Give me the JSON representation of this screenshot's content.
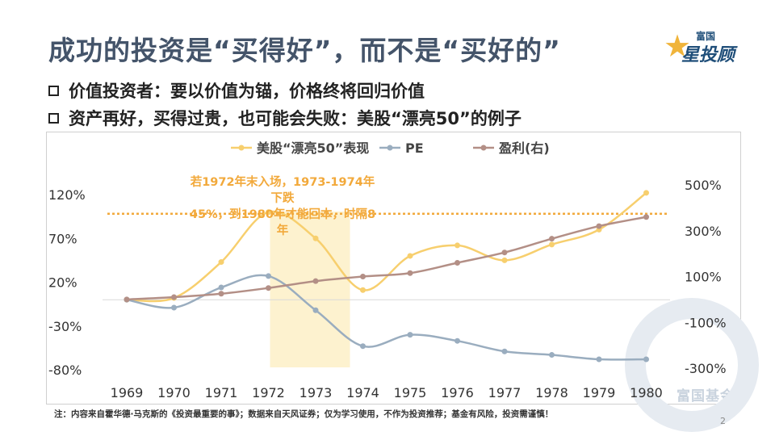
{
  "title": "成功的投资是“买得好”，而不是“买好的”",
  "logo": {
    "top": "富国",
    "main": "星投顾"
  },
  "bullets": [
    "价值投资者：要以价值为锚，价格终将回归价值",
    "资产再好，买得过贵，也可能会失败：美股“漂亮50”的例子"
  ],
  "annotation": [
    "若1972年末入场，1973-1974年下跌",
    "45%，到1980年才能回本，时隔8年"
  ],
  "note": "注：内容来自霍华德·马克斯的《投资最重要的事》；数据来自天风证券；仅为学习使用，不作为投资推荐；基金有风险，投资需谨慎！",
  "page_number": "2",
  "watermark": "富国基金",
  "colors": {
    "nifty50": "#f7cf6e",
    "pe": "#9aadbf",
    "earnings": "#b38f86",
    "annotation": "#f2a93b",
    "highlight": "#fdf2cf"
  },
  "chart_data": {
    "type": "line",
    "title": "",
    "legend_position": "top",
    "categories": [
      "1969",
      "1970",
      "1971",
      "1972",
      "1973",
      "1974",
      "1975",
      "1976",
      "1977",
      "1978",
      "1979",
      "1980"
    ],
    "y_left": {
      "ticks": [
        "120%",
        "70%",
        "20%",
        "-30%",
        "-80%"
      ],
      "range": [
        -80,
        120
      ]
    },
    "y_right": {
      "ticks": [
        "500%",
        "300%",
        "100%",
        "-100%",
        "-300%"
      ],
      "range": [
        -300,
        500
      ]
    },
    "series": [
      {
        "name": "美股“漂亮50”表现",
        "axis": "left",
        "values": [
          0,
          2,
          43,
          100,
          70,
          11,
          50,
          62,
          45,
          63,
          80,
          122
        ]
      },
      {
        "name": "PE",
        "axis": "left",
        "values": [
          0,
          -9,
          14,
          27,
          -12,
          -53,
          -40,
          -47,
          -59,
          -63,
          -68,
          -68
        ]
      },
      {
        "name": "盈利(右)",
        "axis": "right",
        "values": [
          0,
          10,
          25,
          50,
          80,
          100,
          115,
          160,
          205,
          265,
          320,
          360
        ]
      }
    ],
    "reference_line": {
      "axis": "left",
      "value": 100
    },
    "highlight_range": [
      "1972",
      "1974"
    ],
    "grid": false
  }
}
